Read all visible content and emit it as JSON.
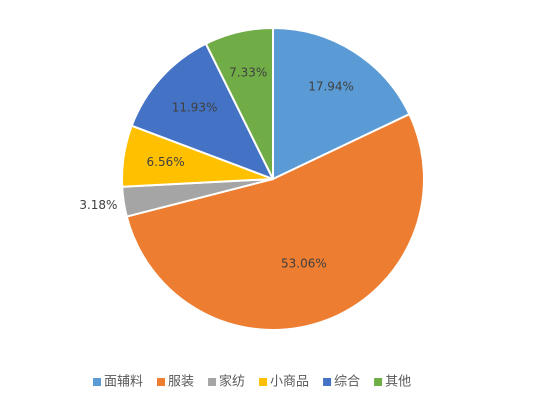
{
  "chart_data": {
    "type": "pie",
    "categories": [
      "面辅料",
      "服装",
      "家纺",
      "小商品",
      "综合",
      "其他"
    ],
    "values": [
      17.94,
      53.06,
      3.18,
      6.56,
      11.93,
      7.33
    ],
    "data_labels": [
      "17.94%",
      "53.06%",
      "3.18%",
      "6.56%",
      "11.93%",
      "7.33%"
    ],
    "colors": [
      "#5B9BD5",
      "#ED7D31",
      "#A5A5A5",
      "#FFC000",
      "#4472C4",
      "#70AD47"
    ],
    "legend_position": "bottom",
    "title": "",
    "start_angle_deg": 0,
    "direction": "clockwise"
  }
}
